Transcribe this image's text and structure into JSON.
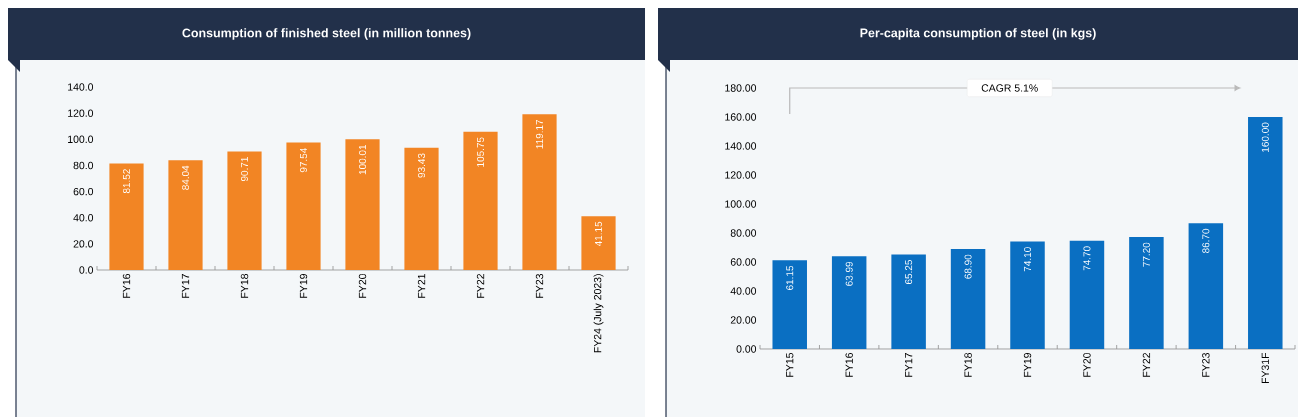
{
  "chart_data": [
    {
      "type": "bar",
      "title": "Consumption of finished steel (in million tonnes)",
      "categories": [
        "FY16",
        "FY17",
        "FY18",
        "FY19",
        "FY20",
        "FY21",
        "FY22",
        "FY23",
        "FY24 (July 2023)"
      ],
      "values": [
        81.52,
        84.04,
        90.71,
        97.54,
        100.01,
        93.43,
        105.75,
        119.17,
        41.15
      ],
      "value_labels": [
        "81.52",
        "84.04",
        "90.71",
        "97.54",
        "100.01",
        "93.43",
        "105.75",
        "119.17",
        "41.15"
      ],
      "color": "#f28524",
      "ylim": [
        0,
        140
      ],
      "yticks": [
        {
          "value": 0,
          "label": "0.0"
        },
        {
          "value": 20,
          "label": "20.0"
        },
        {
          "value": 40,
          "label": "40.0"
        },
        {
          "value": 60,
          "label": "60.0"
        },
        {
          "value": 80,
          "label": "80.0"
        },
        {
          "value": 100,
          "label": "100.0"
        },
        {
          "value": 120,
          "label": "120.0"
        },
        {
          "value": 140,
          "label": "140.0"
        }
      ]
    },
    {
      "type": "bar",
      "title": "Per-capita consumption of steel (in kgs)",
      "categories": [
        "FY15",
        "FY16",
        "FY17",
        "FY18",
        "FY19",
        "FY20",
        "FY22",
        "FY23",
        "FY31F"
      ],
      "values": [
        61.15,
        63.99,
        65.25,
        68.9,
        74.1,
        74.7,
        77.2,
        86.7,
        160.0
      ],
      "value_labels": [
        "61.15",
        "63.99",
        "65.25",
        "68.90",
        "74.10",
        "74.70",
        "77.20",
        "86.70",
        "160.00"
      ],
      "color": "#0a6fc2",
      "ylim": [
        0,
        180
      ],
      "yticks": [
        {
          "value": 0,
          "label": "0.00"
        },
        {
          "value": 20,
          "label": "20.00"
        },
        {
          "value": 40,
          "label": "40.00"
        },
        {
          "value": 60,
          "label": "60.00"
        },
        {
          "value": 80,
          "label": "80.00"
        },
        {
          "value": 100,
          "label": "100.00"
        },
        {
          "value": 120,
          "label": "120.00"
        },
        {
          "value": 140,
          "label": "140.00"
        },
        {
          "value": 160,
          "label": "160.00"
        },
        {
          "value": 180,
          "label": "180.00"
        }
      ],
      "annotations": [
        "CAGR 5.1%"
      ]
    }
  ]
}
